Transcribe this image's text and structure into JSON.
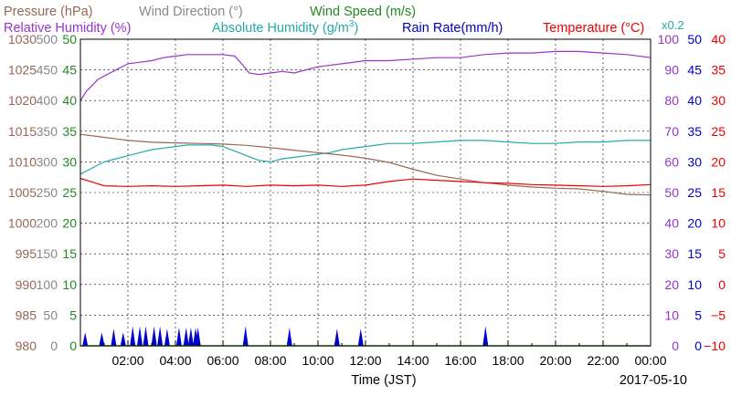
{
  "chart_data": {
    "type": "line",
    "legend": [
      {
        "key": "pressure",
        "label": "Pressure (hPa)",
        "color": "#996655"
      },
      {
        "key": "winddir",
        "label": "Wind Direction (°)",
        "color": "#888888"
      },
      {
        "key": "windspeed",
        "label": "Wind Speed (m/s)",
        "color": "#228822"
      },
      {
        "key": "rh",
        "label": "Relative Humidity (%)",
        "color": "#9933cc"
      },
      {
        "key": "ah",
        "label": "Absolute Humidity (g/m",
        "sup": "3",
        "close": ")",
        "color": "#22aaaa"
      },
      {
        "key": "rain",
        "label": "Rain Rate(mm/h)",
        "color": "#0000cc"
      },
      {
        "key": "temp",
        "label": "Temperature (°C)",
        "color": "#ee0000"
      }
    ],
    "multiplier_label": "x0.2",
    "xlabel": "Time (JST)",
    "date_label": "2017-05-10",
    "x_range": [
      0,
      24
    ],
    "x_ticks": [
      {
        "value": 2,
        "label": "02:00"
      },
      {
        "value": 4,
        "label": "04:00"
      },
      {
        "value": 6,
        "label": "06:00"
      },
      {
        "value": 8,
        "label": "08:00"
      },
      {
        "value": 10,
        "label": "10:00"
      },
      {
        "value": 12,
        "label": "12:00"
      },
      {
        "value": 14,
        "label": "14:00"
      },
      {
        "value": 16,
        "label": "16:00"
      },
      {
        "value": 18,
        "label": "18:00"
      },
      {
        "value": 20,
        "label": "20:00"
      },
      {
        "value": 22,
        "label": "22:00"
      },
      {
        "value": 24,
        "label": "00:00"
      }
    ],
    "grid": true,
    "axes": {
      "pressure": {
        "range": [
          980,
          1030
        ],
        "ticks": [
          "980",
          "985",
          "990",
          "995",
          "1000",
          "1005",
          "1010",
          "1015",
          "1020",
          "1025",
          "1030"
        ],
        "color": "#996655"
      },
      "winddir": {
        "range": [
          0,
          500
        ],
        "ticks": [
          "0",
          "50",
          "100",
          "150",
          "200",
          "250",
          "300",
          "350",
          "400",
          "450",
          "500"
        ],
        "color": "#888888"
      },
      "windspeed": {
        "range": [
          0,
          50
        ],
        "ticks": [
          "0",
          "5",
          "10",
          "15",
          "20",
          "25",
          "30",
          "35",
          "40",
          "45",
          "50"
        ],
        "color": "#228822"
      },
      "rh": {
        "range": [
          0,
          100
        ],
        "ticks": [
          "0",
          "10",
          "20",
          "30",
          "40",
          "50",
          "60",
          "70",
          "80",
          "90",
          "100"
        ],
        "color": "#9933cc"
      },
      "rain": {
        "range": [
          0,
          50
        ],
        "ticks": [
          "0",
          "5",
          "10",
          "15",
          "20",
          "25",
          "30",
          "35",
          "40",
          "45",
          "50"
        ],
        "color": "#0000cc"
      },
      "temp": {
        "range": [
          -10,
          40
        ],
        "ticks": [
          "−10",
          "−5",
          "0",
          "5",
          "10",
          "15",
          "20",
          "25",
          "30",
          "35",
          "40"
        ],
        "color": "#ee0000"
      }
    },
    "series": [
      {
        "name": "Relative Humidity (%)",
        "axis": "rh",
        "color": "#9933cc",
        "x": [
          0,
          0.25,
          0.5,
          0.75,
          1,
          1.5,
          2,
          2.5,
          3,
          3.5,
          4,
          4.5,
          5,
          5.5,
          6,
          6.5,
          6.9,
          7.1,
          7.5,
          8,
          8.5,
          9,
          9.5,
          10,
          11,
          12,
          13,
          14,
          15,
          16,
          17,
          18,
          19,
          20,
          21,
          22,
          23,
          24
        ],
        "y": [
          80,
          83,
          85,
          87,
          88,
          90,
          92,
          92.5,
          93,
          94,
          94.5,
          95,
          95,
          95,
          95,
          94.5,
          91,
          89,
          88.5,
          89,
          89.5,
          89,
          90,
          91,
          92,
          93,
          93,
          93.5,
          94,
          94,
          95,
          95.5,
          95.5,
          96,
          96,
          95.5,
          95,
          94
        ]
      },
      {
        "name": "Absolute Humidity (g/m3)",
        "axis": "rh",
        "color": "#22aaaa",
        "x": [
          0,
          0.5,
          1,
          1.5,
          2,
          2.5,
          3,
          3.5,
          4,
          4.5,
          5,
          5.5,
          6,
          6.5,
          7,
          7.5,
          8,
          8.5,
          9,
          9.5,
          10,
          10.5,
          11,
          12,
          13,
          14,
          15,
          16,
          17,
          18,
          19,
          20,
          21,
          22,
          23,
          24
        ],
        "y": [
          56,
          58,
          60,
          61,
          62,
          63,
          64,
          64.5,
          65,
          65.5,
          65.5,
          65.5,
          65,
          63.5,
          62,
          60.5,
          60,
          61,
          61.5,
          62,
          62.5,
          63,
          64,
          65,
          66,
          66,
          66.5,
          67,
          67,
          66.5,
          66,
          66,
          66.5,
          66.5,
          67,
          67
        ]
      },
      {
        "name": "Pressure (hPa)",
        "axis": "pressure",
        "color": "#996655",
        "x": [
          0,
          1,
          2,
          3,
          4,
          5,
          6,
          7,
          8,
          9,
          10,
          11,
          12,
          13,
          14,
          15,
          16,
          17,
          18,
          19,
          20,
          21,
          22,
          23,
          24
        ],
        "y": [
          1014.5,
          1014,
          1013.5,
          1013.2,
          1013.1,
          1013,
          1012.9,
          1012.7,
          1012.3,
          1011.9,
          1011.5,
          1011.1,
          1010.6,
          1009.9,
          1008.8,
          1007.8,
          1007.2,
          1006.6,
          1006.2,
          1005.9,
          1005.7,
          1005.6,
          1005.2,
          1004.7,
          1004.6
        ]
      },
      {
        "name": "Temperature (°C)",
        "axis": "temp",
        "color": "#ee0000",
        "x": [
          0,
          0.5,
          1,
          2,
          3,
          4,
          5,
          6,
          7,
          8,
          9,
          10,
          11,
          12,
          13,
          14,
          15,
          16,
          17,
          18,
          19,
          20,
          21,
          22,
          23,
          24
        ],
        "y": [
          17.3,
          16.7,
          16.1,
          16,
          16.1,
          16,
          16.1,
          16.2,
          16,
          16.2,
          16.1,
          16.2,
          16,
          16.2,
          16.8,
          17.2,
          17,
          16.8,
          16.6,
          16.5,
          16.3,
          16.2,
          16.1,
          16,
          16.1,
          16.3
        ]
      },
      {
        "name": "Wind Speed (m/s)",
        "axis": "windspeed",
        "color": "#228822",
        "x": [
          0,
          24
        ],
        "y": [
          0,
          0
        ]
      }
    ],
    "rain_events": [
      {
        "t": 0.2,
        "v": 2.2
      },
      {
        "t": 0.9,
        "v": 2.2
      },
      {
        "t": 1.4,
        "v": 2.8
      },
      {
        "t": 1.8,
        "v": 2.2
      },
      {
        "t": 2.2,
        "v": 3.2
      },
      {
        "t": 2.5,
        "v": 3.2
      },
      {
        "t": 2.75,
        "v": 3.2
      },
      {
        "t": 3.1,
        "v": 3.2
      },
      {
        "t": 3.35,
        "v": 3.2
      },
      {
        "t": 3.65,
        "v": 2.8
      },
      {
        "t": 4.15,
        "v": 3.0
      },
      {
        "t": 4.45,
        "v": 3.0
      },
      {
        "t": 4.65,
        "v": 3.0
      },
      {
        "t": 4.85,
        "v": 3.0
      },
      {
        "t": 4.95,
        "v": 3.0
      },
      {
        "t": 6.95,
        "v": 3.2
      },
      {
        "t": 8.8,
        "v": 3.0
      },
      {
        "t": 10.8,
        "v": 2.8
      },
      {
        "t": 11.8,
        "v": 2.8
      },
      {
        "t": 17.05,
        "v": 3.2
      }
    ]
  }
}
